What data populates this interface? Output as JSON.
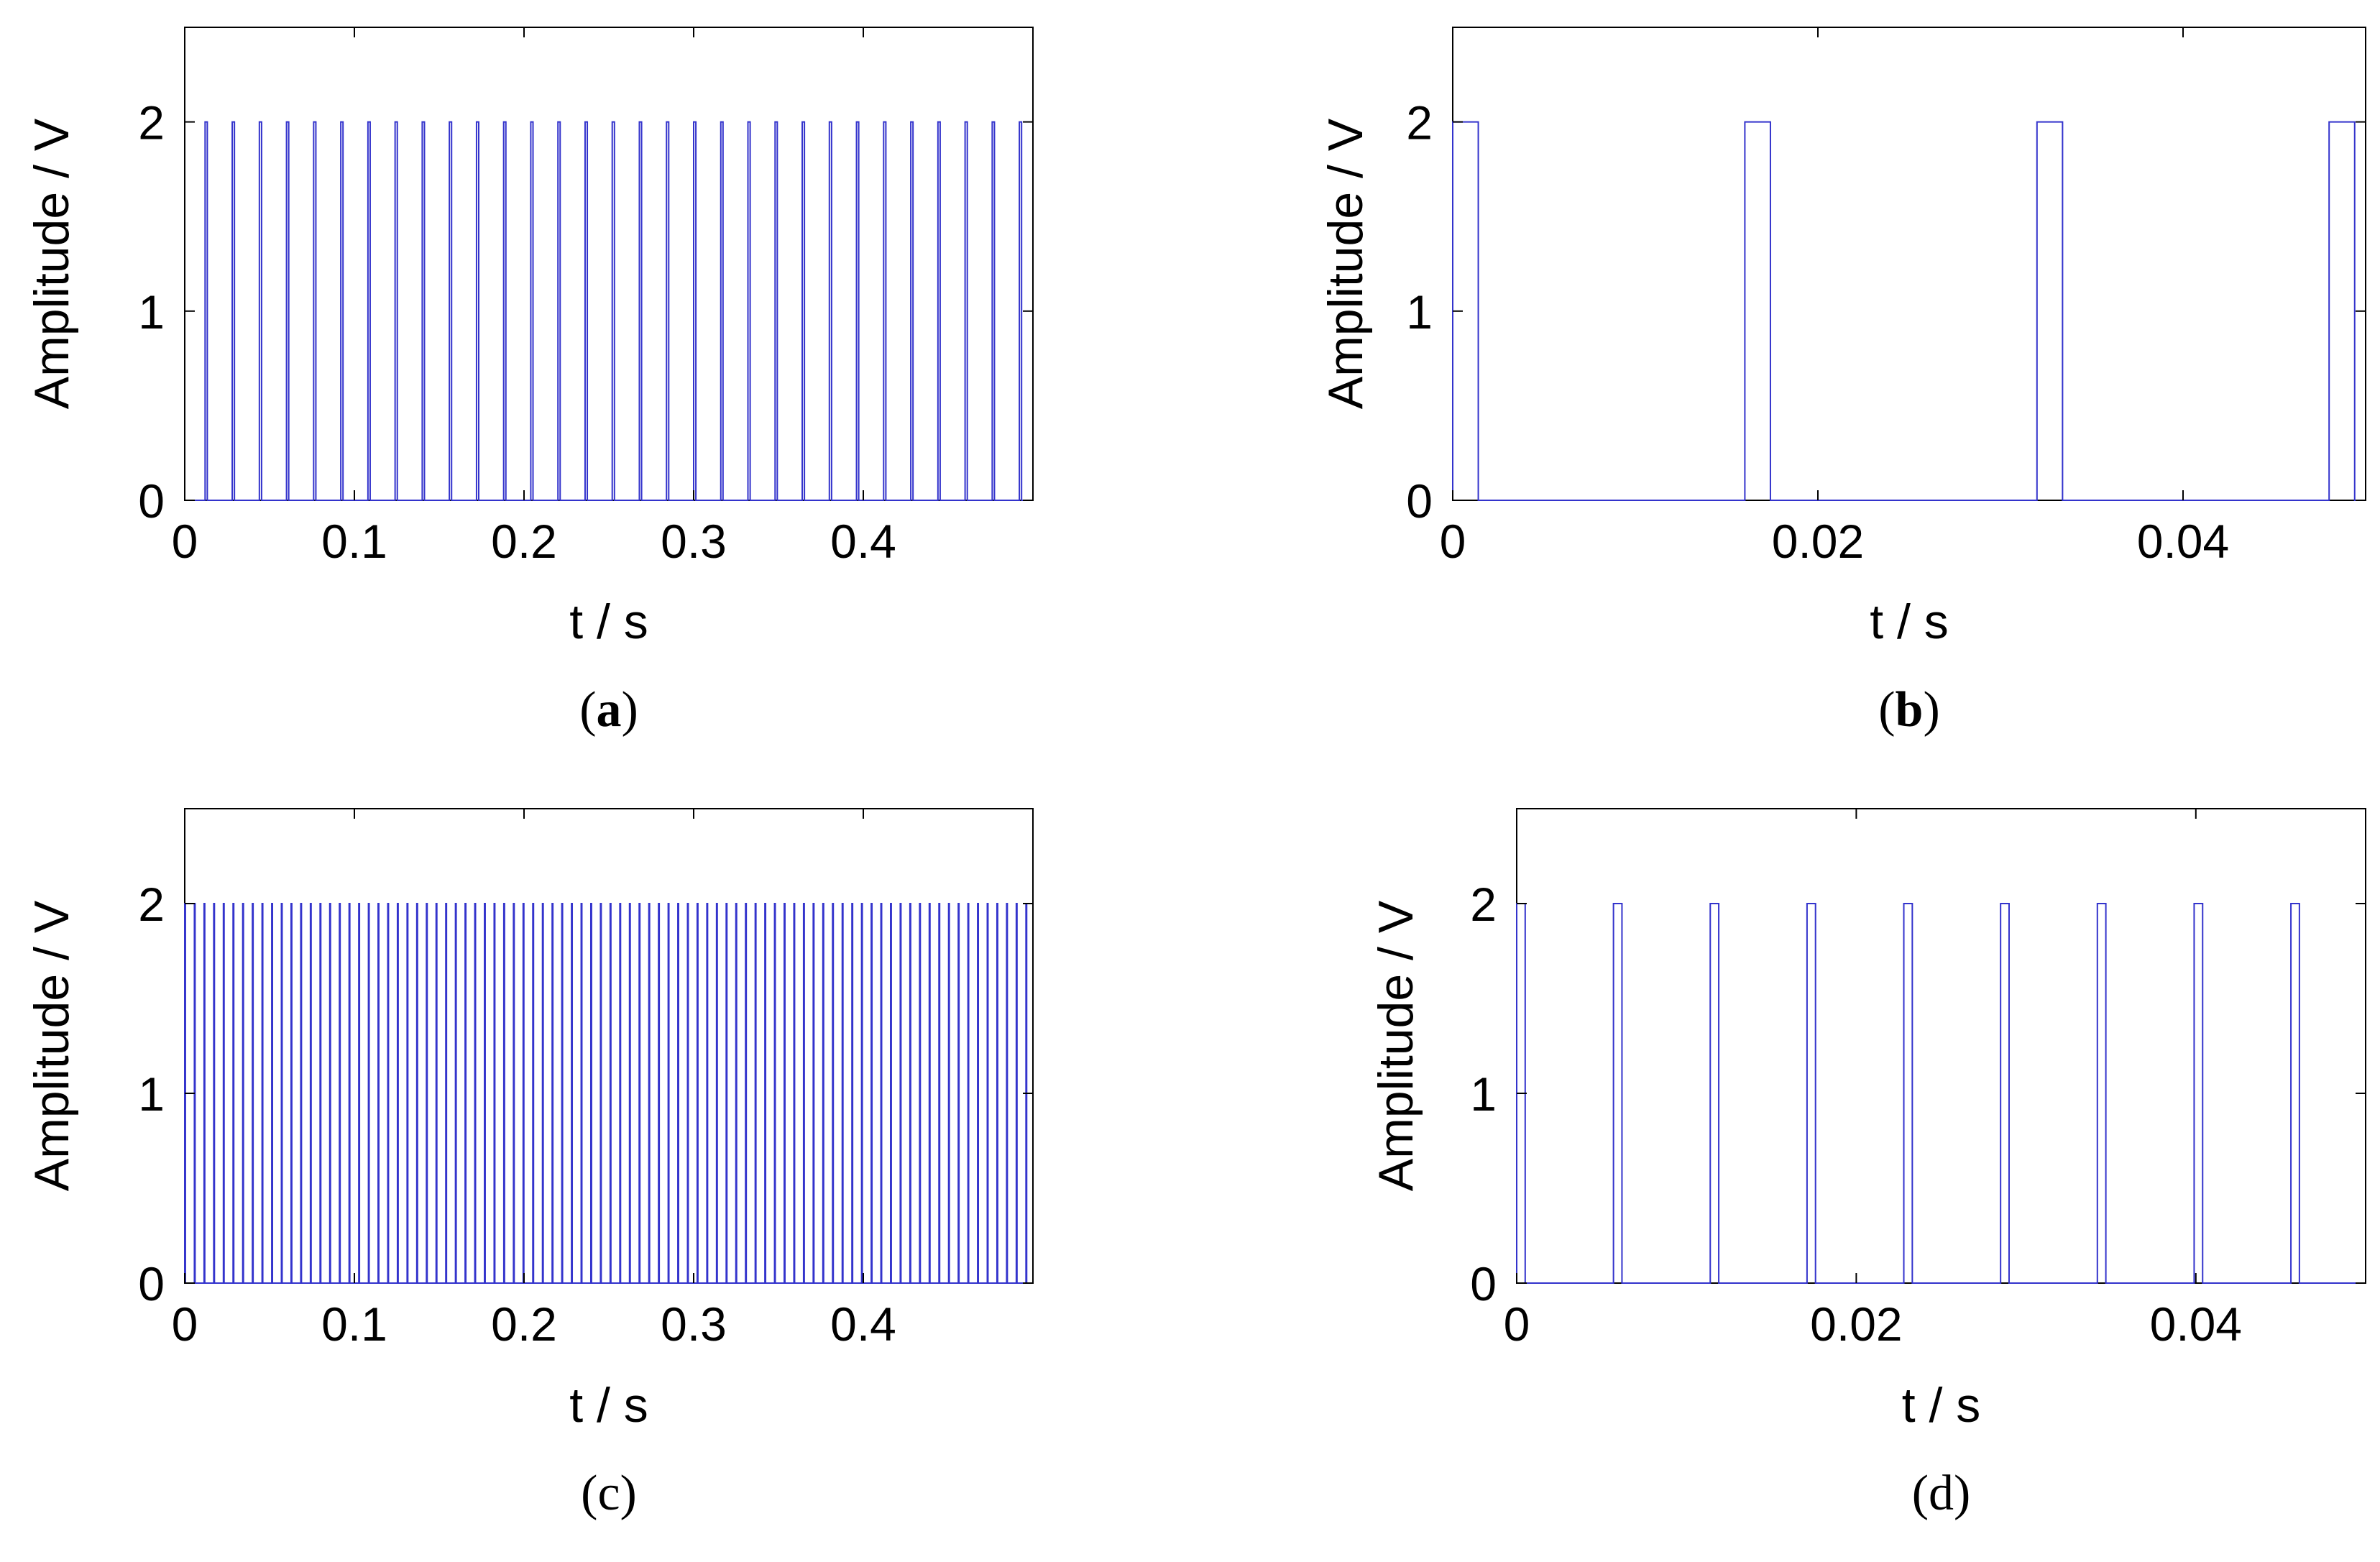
{
  "chart_data": [
    {
      "id": "a",
      "type": "line",
      "caption_open": "(",
      "caption_letter": "a",
      "caption_close": ")",
      "caption_bold": true,
      "xlabel": "t / s",
      "ylabel": "Amplitude / V",
      "xlim": [
        0,
        0.5
      ],
      "ylim": [
        0,
        2.5
      ],
      "xticks": [
        0,
        0.1,
        0.2,
        0.3,
        0.4
      ],
      "xtick_labels": [
        "0",
        "0.1",
        "0.2",
        "0.3",
        "0.4"
      ],
      "yticks": [
        0,
        1,
        2
      ],
      "ytick_labels": [
        "0",
        "1",
        "2"
      ],
      "series": [
        {
          "name": "pulse train",
          "color": "#3333cc",
          "amplitude": 2,
          "pulse_starts": [
            0.012,
            0.028,
            0.044,
            0.06,
            0.076,
            0.092,
            0.108,
            0.124,
            0.14,
            0.156,
            0.172,
            0.188,
            0.204,
            0.22,
            0.236,
            0.252,
            0.268,
            0.284,
            0.3,
            0.316,
            0.332,
            0.348,
            0.364,
            0.38,
            0.396,
            0.412,
            0.428,
            0.444,
            0.46,
            0.476,
            0.492
          ],
          "pulse_width": 0.0013
        }
      ]
    },
    {
      "id": "b",
      "type": "line",
      "caption_open": "(",
      "caption_letter": "b",
      "caption_close": ")",
      "caption_bold": true,
      "xlabel": "t / s",
      "ylabel": "Amplitude / V",
      "xlim": [
        0,
        0.05
      ],
      "ylim": [
        0,
        2.5
      ],
      "xticks": [
        0,
        0.02,
        0.04
      ],
      "xtick_labels": [
        "0",
        "0.02",
        "0.04"
      ],
      "yticks": [
        0,
        1,
        2
      ],
      "ytick_labels": [
        "0",
        "1",
        "2"
      ],
      "series": [
        {
          "name": "pulse train",
          "color": "#3333cc",
          "amplitude": 2,
          "pulse_starts": [
            0,
            0.016,
            0.032,
            0.048
          ],
          "pulse_width": 0.0014
        }
      ]
    },
    {
      "id": "c",
      "type": "line",
      "caption_open": "(",
      "caption_letter": "c",
      "caption_close": ")",
      "caption_bold": false,
      "xlabel": "t / s",
      "ylabel": "Amplitude / V",
      "xlim": [
        0,
        0.5
      ],
      "ylim": [
        0,
        2.5
      ],
      "xticks": [
        0,
        0.1,
        0.2,
        0.3,
        0.4
      ],
      "xtick_labels": [
        "0",
        "0.1",
        "0.2",
        "0.3",
        "0.4"
      ],
      "yticks": [
        0,
        1,
        2
      ],
      "ytick_labels": [
        "0",
        "1",
        "2"
      ],
      "series": [
        {
          "name": "pulse train",
          "color": "#3333cc",
          "amplitude": 2,
          "period": 0.0057,
          "start": 0,
          "end": 0.5,
          "pulse_width": 0.0004
        }
      ]
    },
    {
      "id": "d",
      "type": "line",
      "caption_open": "(",
      "caption_letter": "d",
      "caption_close": ")",
      "caption_bold": false,
      "xlabel": "t / s",
      "ylabel": "Amplitude / V",
      "xlim": [
        0,
        0.05
      ],
      "ylim": [
        0,
        2.5
      ],
      "xticks": [
        0,
        0.02,
        0.04
      ],
      "xtick_labels": [
        "0",
        "0.02",
        "0.04"
      ],
      "yticks": [
        0,
        1,
        2
      ],
      "ytick_labels": [
        "0",
        "1",
        "2"
      ],
      "series": [
        {
          "name": "pulse train",
          "color": "#3333cc",
          "amplitude": 2,
          "pulse_starts": [
            0,
            0.0057,
            0.0114,
            0.0171,
            0.0228,
            0.0285,
            0.0342,
            0.0399,
            0.0456
          ],
          "pulse_width": 0.0005
        }
      ]
    }
  ]
}
